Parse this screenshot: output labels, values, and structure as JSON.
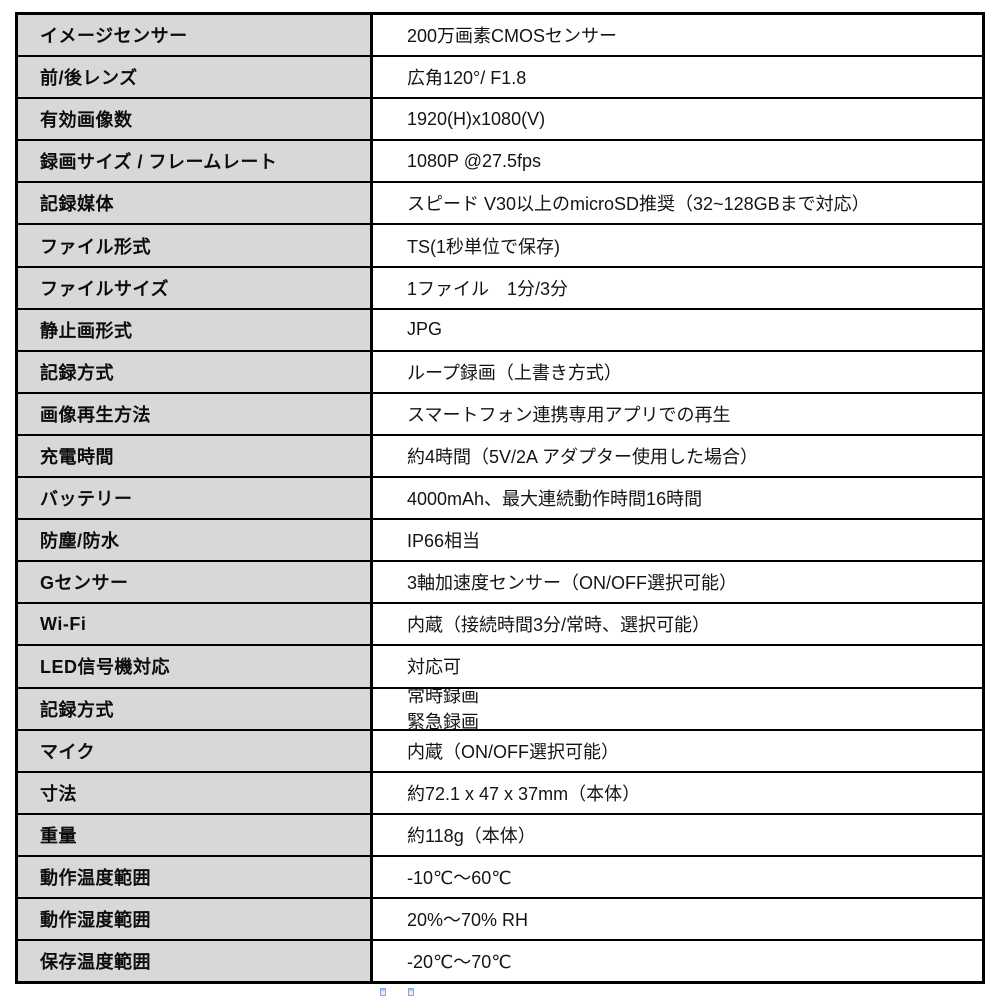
{
  "table": {
    "style": {
      "label_bg": "#d8d8d8",
      "value_bg": "#ffffff",
      "border_color": "#000000",
      "text_color": "#141414"
    },
    "rows": [
      {
        "label": "イメージセンサー",
        "value": "200万画素CMOSセンサー"
      },
      {
        "label": "前/後レンズ",
        "value": "広角120°/ F1.8"
      },
      {
        "label": "有効画像数",
        "value": "1920(H)x1080(V)"
      },
      {
        "label": "録画サイズ / フレームレート",
        "value": "1080P @27.5fps"
      },
      {
        "label": "記録媒体",
        "value": "スピード V30以上のmicroSD推奨（32~128GBまで対応）"
      },
      {
        "label": "ファイル形式",
        "value": "TS(1秒単位で保存)"
      },
      {
        "label": "ファイルサイズ",
        "value": "1ファイル　1分/3分"
      },
      {
        "label": "静止画形式",
        "value": "JPG"
      },
      {
        "label": "記録方式",
        "value": "ループ録画（上書き方式）"
      },
      {
        "label": "画像再生方法",
        "value": "スマートフォン連携専用アプリでの再生"
      },
      {
        "label": "充電時間",
        "value": "約4時間（5V/2A アダプター使用した場合）"
      },
      {
        "label": "バッテリー",
        "value": "4000mAh、最大連続動作時間16時間"
      },
      {
        "label": "防塵/防水",
        "value": "IP66相当"
      },
      {
        "label": "Gセンサー",
        "value": "3軸加速度センサー（ON/OFF選択可能）"
      },
      {
        "label": "Wi-Fi",
        "value": "内蔵（接続時間3分/常時、選択可能）"
      },
      {
        "label": "LED信号機対応",
        "value": "対応可"
      },
      {
        "label": "記録方式",
        "lines": [
          "常時録画",
          "緊急録画"
        ]
      },
      {
        "label": "マイク",
        "value": "内蔵（ON/OFF選択可能）"
      },
      {
        "label": "寸法",
        "value": "約72.1 x 47 x 37mm（本体）"
      },
      {
        "label": "重量",
        "value": "約118g（本体）"
      },
      {
        "label": "動作温度範囲",
        "value": "-10℃〜60℃"
      },
      {
        "label": "動作湿度範囲",
        "value": "20%〜70% RH"
      },
      {
        "label": "保存温度範囲",
        "value": "-20℃〜70℃"
      }
    ]
  },
  "artifacts": {
    "anchor_mark_color": "#8aa8dc"
  }
}
